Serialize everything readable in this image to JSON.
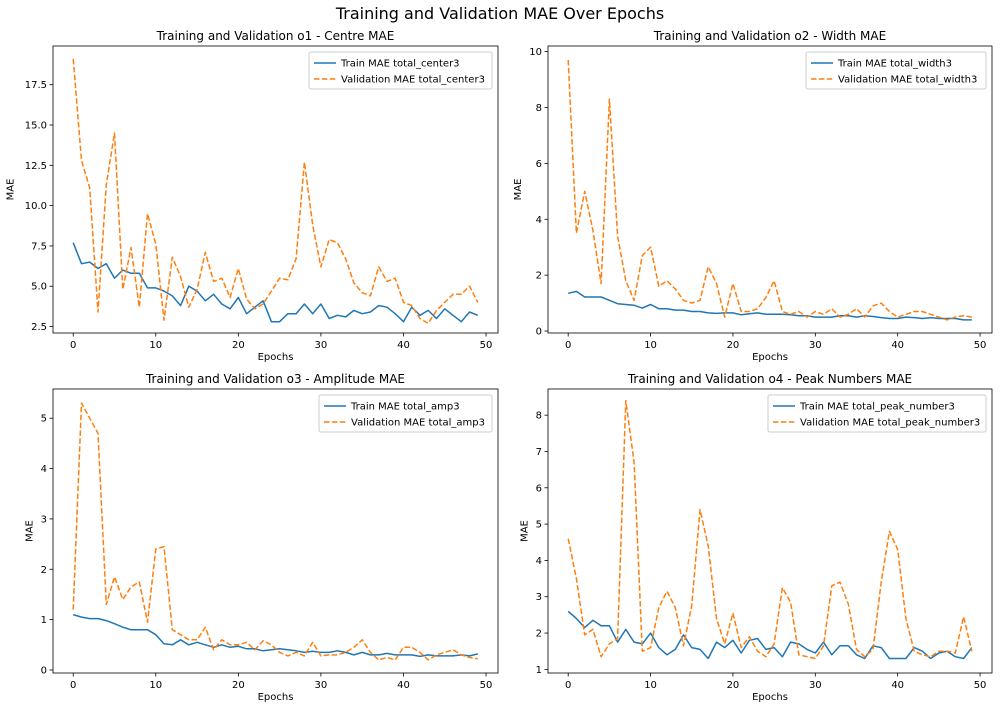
{
  "figure": {
    "suptitle": "Training and Validation MAE Over Epochs"
  },
  "colors": {
    "train": "#1f77b4",
    "validation": "#ff7f0e",
    "axis": "#000000",
    "legend_border": "#cccccc",
    "background": "#ffffff"
  },
  "chart_data": [
    {
      "type": "line",
      "title": "Training and Validation o1 - Centre MAE",
      "xlabel": "Epochs",
      "ylabel": "MAE",
      "xlim": [
        -2.45,
        51.45
      ],
      "ylim": [
        2.1,
        19.9
      ],
      "xticks": [
        0,
        10,
        20,
        30,
        40,
        50
      ],
      "xtick_labels": [
        "0",
        "10",
        "20",
        "30",
        "40",
        "50"
      ],
      "yticks": [
        2.5,
        5.0,
        7.5,
        10.0,
        12.5,
        15.0,
        17.5
      ],
      "ytick_labels": [
        "2.5",
        "5.0",
        "7.5",
        "10.0",
        "12.5",
        "15.0",
        "17.5"
      ],
      "grid": false,
      "legend_position": "upper right",
      "x": [
        0,
        1,
        2,
        3,
        4,
        5,
        6,
        7,
        8,
        9,
        10,
        11,
        12,
        13,
        14,
        15,
        16,
        17,
        18,
        19,
        20,
        21,
        22,
        23,
        24,
        25,
        26,
        27,
        28,
        29,
        30,
        31,
        32,
        33,
        34,
        35,
        36,
        37,
        38,
        39,
        40,
        41,
        42,
        43,
        44,
        45,
        46,
        47,
        48,
        49
      ],
      "series": [
        {
          "name": "Train MAE total_center3",
          "style": "solid",
          "values": [
            7.7,
            6.4,
            6.5,
            6.1,
            6.4,
            5.5,
            6.0,
            5.8,
            5.8,
            4.9,
            4.9,
            4.7,
            4.4,
            3.8,
            5.0,
            4.7,
            4.1,
            4.5,
            3.9,
            3.6,
            4.3,
            3.3,
            3.7,
            4.1,
            2.8,
            2.8,
            3.3,
            3.3,
            3.9,
            3.3,
            3.9,
            3.0,
            3.2,
            3.1,
            3.5,
            3.3,
            3.4,
            3.8,
            3.7,
            3.3,
            2.8,
            3.7,
            3.2,
            3.5,
            3.0,
            3.6,
            3.2,
            2.8,
            3.4,
            3.2
          ]
        },
        {
          "name": "Validation MAE total_center3",
          "style": "dashed",
          "values": [
            19.1,
            12.8,
            11.1,
            3.4,
            11.3,
            14.5,
            4.8,
            7.4,
            3.7,
            9.5,
            7.6,
            2.9,
            6.8,
            5.6,
            3.7,
            4.8,
            7.1,
            5.3,
            5.5,
            4.3,
            6.1,
            4.2,
            3.6,
            3.9,
            4.7,
            5.5,
            5.4,
            6.7,
            12.7,
            8.8,
            6.2,
            7.9,
            7.7,
            6.7,
            5.2,
            4.6,
            4.4,
            6.2,
            5.3,
            5.5,
            4.0,
            3.8,
            3.0,
            2.7,
            3.5,
            4.0,
            4.5,
            4.5,
            5.0,
            4.0
          ]
        }
      ]
    },
    {
      "type": "line",
      "title": "Training and Validation o2 - Width MAE",
      "xlabel": "Epochs",
      "ylabel": "MAE",
      "xlim": [
        -2.45,
        51.45
      ],
      "ylim": [
        -0.07,
        10.2
      ],
      "xticks": [
        0,
        10,
        20,
        30,
        40,
        50
      ],
      "xtick_labels": [
        "0",
        "10",
        "20",
        "30",
        "40",
        "50"
      ],
      "yticks": [
        0,
        2,
        4,
        6,
        8,
        10
      ],
      "ytick_labels": [
        "0",
        "2",
        "4",
        "6",
        "8",
        "10"
      ],
      "grid": false,
      "legend_position": "upper right",
      "x": [
        0,
        1,
        2,
        3,
        4,
        5,
        6,
        7,
        8,
        9,
        10,
        11,
        12,
        13,
        14,
        15,
        16,
        17,
        18,
        19,
        20,
        21,
        22,
        23,
        24,
        25,
        26,
        27,
        28,
        29,
        30,
        31,
        32,
        33,
        34,
        35,
        36,
        37,
        38,
        39,
        40,
        41,
        42,
        43,
        44,
        45,
        46,
        47,
        48,
        49
      ],
      "series": [
        {
          "name": "Train MAE total_width3",
          "style": "solid",
          "values": [
            1.35,
            1.42,
            1.22,
            1.22,
            1.22,
            1.1,
            0.98,
            0.95,
            0.92,
            0.82,
            0.95,
            0.8,
            0.8,
            0.75,
            0.75,
            0.7,
            0.7,
            0.65,
            0.63,
            0.65,
            0.65,
            0.58,
            0.62,
            0.65,
            0.6,
            0.6,
            0.6,
            0.58,
            0.55,
            0.55,
            0.5,
            0.5,
            0.5,
            0.55,
            0.55,
            0.5,
            0.55,
            0.52,
            0.48,
            0.45,
            0.45,
            0.5,
            0.48,
            0.45,
            0.48,
            0.45,
            0.45,
            0.45,
            0.4,
            0.4
          ]
        },
        {
          "name": "Validation MAE total_width3",
          "style": "dashed",
          "values": [
            9.7,
            3.5,
            5.0,
            3.6,
            1.7,
            8.3,
            3.4,
            1.8,
            1.1,
            2.7,
            3.0,
            1.6,
            1.8,
            1.5,
            1.1,
            1.0,
            1.1,
            2.3,
            1.7,
            0.5,
            1.7,
            0.7,
            0.7,
            0.8,
            1.2,
            1.8,
            0.7,
            0.6,
            0.7,
            0.5,
            0.7,
            0.6,
            0.8,
            0.5,
            0.6,
            0.8,
            0.5,
            0.9,
            1.0,
            0.7,
            0.5,
            0.6,
            0.7,
            0.7,
            0.6,
            0.5,
            0.4,
            0.5,
            0.55,
            0.5
          ]
        }
      ]
    },
    {
      "type": "line",
      "title": "Training and Validation o3 - Amplitude MAE",
      "xlabel": "Epochs",
      "ylabel": "MAE",
      "xlim": [
        -2.45,
        51.45
      ],
      "ylim": [
        -0.06,
        5.58
      ],
      "xticks": [
        0,
        10,
        20,
        30,
        40,
        50
      ],
      "xtick_labels": [
        "0",
        "10",
        "20",
        "30",
        "40",
        "50"
      ],
      "yticks": [
        0,
        1,
        2,
        3,
        4,
        5
      ],
      "ytick_labels": [
        "0",
        "1",
        "2",
        "3",
        "4",
        "5"
      ],
      "grid": false,
      "legend_position": "upper right",
      "x": [
        0,
        1,
        2,
        3,
        4,
        5,
        6,
        7,
        8,
        9,
        10,
        11,
        12,
        13,
        14,
        15,
        16,
        17,
        18,
        19,
        20,
        21,
        22,
        23,
        24,
        25,
        26,
        27,
        28,
        29,
        30,
        31,
        32,
        33,
        34,
        35,
        36,
        37,
        38,
        39,
        40,
        41,
        42,
        43,
        44,
        45,
        46,
        47,
        48,
        49
      ],
      "series": [
        {
          "name": "Train MAE total_amp3",
          "style": "solid",
          "values": [
            1.1,
            1.05,
            1.02,
            1.02,
            0.98,
            0.92,
            0.85,
            0.8,
            0.8,
            0.8,
            0.7,
            0.52,
            0.5,
            0.6,
            0.5,
            0.55,
            0.5,
            0.45,
            0.5,
            0.45,
            0.47,
            0.42,
            0.42,
            0.38,
            0.4,
            0.42,
            0.4,
            0.38,
            0.35,
            0.37,
            0.35,
            0.35,
            0.38,
            0.35,
            0.3,
            0.35,
            0.3,
            0.3,
            0.33,
            0.3,
            0.3,
            0.3,
            0.27,
            0.3,
            0.28,
            0.28,
            0.28,
            0.3,
            0.28,
            0.32
          ]
        },
        {
          "name": "Validation MAE total_amp3",
          "style": "dashed",
          "values": [
            1.2,
            5.3,
            5.0,
            4.7,
            1.3,
            1.85,
            1.4,
            1.65,
            1.75,
            0.95,
            2.4,
            2.45,
            0.8,
            0.7,
            0.6,
            0.6,
            0.85,
            0.4,
            0.6,
            0.5,
            0.5,
            0.55,
            0.4,
            0.58,
            0.5,
            0.35,
            0.28,
            0.35,
            0.28,
            0.55,
            0.28,
            0.3,
            0.3,
            0.35,
            0.45,
            0.6,
            0.35,
            0.2,
            0.25,
            0.2,
            0.45,
            0.45,
            0.35,
            0.2,
            0.3,
            0.35,
            0.4,
            0.3,
            0.25,
            0.22
          ]
        }
      ]
    },
    {
      "type": "line",
      "title": "Training and Validation o4 - Peak Numbers MAE",
      "xlabel": "Epochs",
      "ylabel": "MAE",
      "xlim": [
        -2.45,
        51.45
      ],
      "ylim": [
        0.9,
        8.72
      ],
      "xticks": [
        0,
        10,
        20,
        30,
        40,
        50
      ],
      "xtick_labels": [
        "0",
        "10",
        "20",
        "30",
        "40",
        "50"
      ],
      "yticks": [
        1,
        2,
        3,
        4,
        5,
        6,
        7,
        8
      ],
      "ytick_labels": [
        "1",
        "2",
        "3",
        "4",
        "5",
        "6",
        "7",
        "8"
      ],
      "grid": false,
      "legend_position": "upper right",
      "x": [
        0,
        1,
        2,
        3,
        4,
        5,
        6,
        7,
        8,
        9,
        10,
        11,
        12,
        13,
        14,
        15,
        16,
        17,
        18,
        19,
        20,
        21,
        22,
        23,
        24,
        25,
        26,
        27,
        28,
        29,
        30,
        31,
        32,
        33,
        34,
        35,
        36,
        37,
        38,
        39,
        40,
        41,
        42,
        43,
        44,
        45,
        46,
        47,
        48,
        49
      ],
      "series": [
        {
          "name": "Train MAE total_peak_number3",
          "style": "solid",
          "values": [
            2.6,
            2.4,
            2.15,
            2.35,
            2.2,
            2.2,
            1.75,
            2.1,
            1.75,
            1.7,
            2.0,
            1.6,
            1.4,
            1.55,
            1.95,
            1.6,
            1.55,
            1.3,
            1.75,
            1.6,
            1.8,
            1.45,
            1.8,
            1.85,
            1.55,
            1.6,
            1.35,
            1.75,
            1.7,
            1.55,
            1.45,
            1.75,
            1.4,
            1.65,
            1.65,
            1.4,
            1.3,
            1.65,
            1.6,
            1.3,
            1.3,
            1.3,
            1.6,
            1.5,
            1.3,
            1.45,
            1.5,
            1.35,
            1.3,
            1.6
          ]
        },
        {
          "name": "Validation MAE total_peak_number3",
          "style": "dashed",
          "values": [
            4.6,
            3.5,
            1.95,
            2.1,
            1.35,
            1.7,
            1.85,
            8.4,
            6.7,
            1.5,
            1.6,
            2.7,
            3.15,
            2.7,
            1.65,
            2.75,
            5.4,
            4.4,
            2.4,
            1.7,
            2.55,
            1.6,
            1.9,
            1.5,
            1.35,
            1.7,
            3.25,
            2.85,
            1.4,
            1.35,
            1.3,
            1.65,
            3.3,
            3.4,
            2.8,
            1.55,
            1.35,
            1.55,
            3.4,
            4.8,
            4.3,
            2.4,
            1.5,
            1.4,
            1.35,
            1.5,
            1.5,
            1.45,
            2.45,
            1.5
          ]
        }
      ]
    }
  ]
}
